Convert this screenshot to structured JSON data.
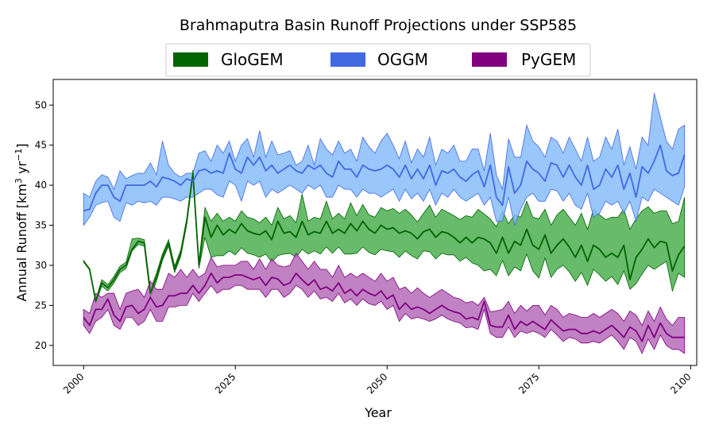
{
  "chart_data": {
    "type": "line",
    "title": "Brahmaputra Basin Runoff Projections under SSP585",
    "xlabel": "Year",
    "ylabel_main": "Annual Runoff [km",
    "ylabel_sup1": "3",
    "ylabel_mid": " yr",
    "ylabel_sup2": "−1",
    "ylabel_end": "]",
    "xlim": [
      1995,
      2101
    ],
    "ylim": [
      17.5,
      53.2
    ],
    "xticks": [
      2000,
      2025,
      2050,
      2075,
      2100
    ],
    "yticks": [
      20,
      25,
      30,
      35,
      40,
      45,
      50
    ],
    "legend_position": "top-center, above plot",
    "series": [
      {
        "name": "GloGEM",
        "color": "#006400",
        "band_color": "#4CAF50",
        "x": [
          2000,
          2001,
          2002,
          2003,
          2004,
          2005,
          2006,
          2007,
          2008,
          2009,
          2010,
          2011,
          2012,
          2013,
          2014,
          2015,
          2016,
          2017,
          2018,
          2019,
          2020,
          2021,
          2022,
          2023,
          2024,
          2025,
          2026,
          2027,
          2028,
          2029,
          2030,
          2031,
          2032,
          2033,
          2034,
          2035,
          2036,
          2037,
          2038,
          2039,
          2040,
          2041,
          2042,
          2043,
          2044,
          2045,
          2046,
          2047,
          2048,
          2049,
          2050,
          2051,
          2052,
          2053,
          2054,
          2055,
          2056,
          2057,
          2058,
          2059,
          2060,
          2061,
          2062,
          2063,
          2064,
          2065,
          2066,
          2067,
          2068,
          2069,
          2070,
          2071,
          2072,
          2073,
          2074,
          2075,
          2076,
          2077,
          2078,
          2079,
          2080,
          2081,
          2082,
          2083,
          2084,
          2085,
          2086,
          2087,
          2088,
          2089,
          2090,
          2091,
          2092,
          2093,
          2094,
          2095,
          2096,
          2097,
          2098,
          2099
        ],
        "mean": [
          30.5,
          29.5,
          25.5,
          27.8,
          27.2,
          28.2,
          29.5,
          30,
          32,
          33,
          32.8,
          26.5,
          28.5,
          31,
          32.8,
          29.5,
          31.5,
          35.5,
          41.5,
          30,
          36,
          33.5,
          35,
          33.8,
          34.5,
          34,
          35.2,
          34.3,
          34,
          33.8,
          34.3,
          33.2,
          35.5,
          34,
          34.2,
          33.5,
          35.5,
          33.8,
          34.2,
          34,
          35.5,
          34,
          34.5,
          34,
          35.2,
          34.3,
          35.5,
          34.5,
          34,
          35,
          34.5,
          34.7,
          34,
          34.3,
          34,
          33.3,
          34.2,
          34.5,
          33.5,
          34.2,
          34,
          33.5,
          32.8,
          33.5,
          32.8,
          33.5,
          33.3,
          32.8,
          31.5,
          33.5,
          31.5,
          33,
          32.5,
          34.5,
          32.5,
          32,
          33.8,
          31.5,
          32.5,
          33.3,
          32.3,
          31,
          32.5,
          30.5,
          32.5,
          32,
          31,
          31.5,
          31,
          32.5,
          28.2,
          31,
          32,
          33.3,
          32.2,
          33,
          32.8,
          29.3,
          31.3,
          32.4
        ],
        "upper": [
          30.6,
          29.6,
          25.7,
          28.2,
          27.6,
          28.6,
          29.9,
          30.4,
          33.3,
          33.4,
          33.2,
          27,
          29,
          31.4,
          33.2,
          29.9,
          31.9,
          35.9,
          41.9,
          30.4,
          37.2,
          35.5,
          36.5,
          35.5,
          36,
          35.5,
          36.8,
          36,
          35.8,
          35.3,
          36,
          35,
          37.2,
          35.8,
          36.2,
          35.3,
          38.9,
          35.5,
          36,
          35.8,
          38,
          35.8,
          36.5,
          35.8,
          37.8,
          36.2,
          37.6,
          36.3,
          36,
          37.2,
          36.8,
          37.1,
          36.5,
          37,
          36.3,
          35.4,
          36.5,
          37.5,
          36,
          37,
          36.6,
          36.2,
          35.7,
          36.2,
          36,
          37,
          36.4,
          35.8,
          34.8,
          36.8,
          35.2,
          36.3,
          36,
          38,
          36,
          35.8,
          37,
          35,
          36.3,
          37,
          36,
          35,
          36.5,
          34.5,
          37,
          36.3,
          35.7,
          36,
          36,
          37,
          34.5,
          35.8,
          36.8,
          37.3,
          36.5,
          36.8,
          36.8,
          35.2,
          35.5,
          38.5
        ],
        "lower": [
          30.4,
          29.4,
          25.3,
          27.4,
          26.8,
          27.8,
          29.1,
          29.6,
          31.8,
          32.6,
          32.4,
          26,
          28,
          30.6,
          32.4,
          29.1,
          31.1,
          35.1,
          41.1,
          29.6,
          33.5,
          31,
          31.2,
          31.2,
          31.8,
          31.3,
          32.2,
          31.5,
          31.3,
          31,
          31.4,
          30.4,
          31.2,
          31.4,
          31.5,
          31,
          32,
          31.4,
          31.8,
          31.4,
          32.3,
          31.5,
          32.3,
          31.4,
          31.4,
          31.5,
          32.3,
          31.6,
          31.3,
          32,
          31.8,
          31.7,
          31,
          31.8,
          31.2,
          30.8,
          31.8,
          31.7,
          30.8,
          31.5,
          31.3,
          31.3,
          30.5,
          31,
          30.3,
          30,
          29.3,
          29.5,
          28.7,
          30.6,
          28.7,
          29.8,
          29.3,
          31.4,
          29.3,
          28.4,
          30.9,
          28.5,
          29.5,
          30,
          29.2,
          28,
          29.1,
          27.5,
          29.5,
          28.8,
          28,
          28.6,
          27.6,
          29.3,
          27,
          27.7,
          28.9,
          30,
          29.5,
          30,
          30.5,
          26.8,
          29,
          28.5
        ]
      },
      {
        "name": "OGGM",
        "color": "#4169E1",
        "band_color": "#87BCFA",
        "x": [
          2000,
          2001,
          2002,
          2003,
          2004,
          2005,
          2006,
          2007,
          2008,
          2009,
          2010,
          2011,
          2012,
          2013,
          2014,
          2015,
          2016,
          2017,
          2018,
          2019,
          2020,
          2021,
          2022,
          2023,
          2024,
          2025,
          2026,
          2027,
          2028,
          2029,
          2030,
          2031,
          2032,
          2033,
          2034,
          2035,
          2036,
          2037,
          2038,
          2039,
          2040,
          2041,
          2042,
          2043,
          2044,
          2045,
          2046,
          2047,
          2048,
          2049,
          2050,
          2051,
          2052,
          2053,
          2054,
          2055,
          2056,
          2057,
          2058,
          2059,
          2060,
          2061,
          2062,
          2063,
          2064,
          2065,
          2066,
          2067,
          2068,
          2069,
          2070,
          2071,
          2072,
          2073,
          2074,
          2075,
          2076,
          2077,
          2078,
          2079,
          2080,
          2081,
          2082,
          2083,
          2084,
          2085,
          2086,
          2087,
          2088,
          2089,
          2090,
          2091,
          2092,
          2093,
          2094,
          2095,
          2096,
          2097,
          2098,
          2099
        ],
        "mean": [
          36.8,
          37,
          39,
          40,
          40,
          38.5,
          38,
          40,
          40,
          40,
          40,
          40.5,
          39.8,
          41,
          40.8,
          40.5,
          40,
          40.8,
          40.5,
          41.8,
          42,
          41.5,
          41.8,
          41.5,
          44,
          42,
          41.5,
          43.5,
          42.5,
          43.5,
          41.8,
          42.5,
          41.5,
          42,
          42.5,
          41.8,
          41.5,
          42.5,
          42,
          42.5,
          41.5,
          41,
          43,
          42,
          42,
          41,
          42.5,
          42,
          41.8,
          42,
          42.5,
          42,
          41,
          42.5,
          40.8,
          42,
          40.8,
          42.5,
          40,
          41.8,
          41.5,
          42,
          41,
          40.5,
          41.3,
          41.8,
          39.8,
          42.5,
          38.5,
          37.5,
          42.3,
          39,
          40,
          43,
          42,
          41.5,
          40.5,
          42.8,
          42.5,
          41,
          42.5,
          41,
          40,
          42.5,
          39.5,
          40,
          42,
          41,
          42.5,
          39.5,
          41.5,
          38.5,
          42.3,
          41.5,
          43,
          45,
          41.8,
          41.2,
          41.5,
          43.8
        ],
        "upper": [
          39,
          38.5,
          40.5,
          41.3,
          41,
          39.5,
          41.8,
          40.8,
          41.2,
          41.5,
          41.5,
          42.8,
          41.3,
          45.5,
          42.5,
          41.5,
          41,
          41.5,
          41.5,
          44,
          44.3,
          43,
          45,
          44,
          45.5,
          43,
          45,
          45.8,
          43.5,
          46.8,
          43.5,
          45.5,
          43.8,
          44,
          44.3,
          42.5,
          43,
          45,
          42.5,
          45.8,
          44.5,
          43.8,
          45.5,
          44,
          44.5,
          43,
          46,
          44.8,
          44,
          45.5,
          46.5,
          45,
          43.3,
          45.5,
          42.8,
          44.5,
          43.5,
          46,
          42.5,
          44.5,
          44,
          45,
          43,
          43,
          44.5,
          44.5,
          41.8,
          46.5,
          41.3,
          39.5,
          45.8,
          43.5,
          43.5,
          47.5,
          45.5,
          44.8,
          43.5,
          46,
          45.5,
          44,
          46,
          44.5,
          43,
          46,
          43,
          43.5,
          46,
          44.5,
          47,
          42.5,
          44.8,
          42,
          46,
          45,
          51.5,
          48.5,
          45.5,
          44.5,
          47,
          47.5
        ],
        "lower": [
          35,
          36,
          37.5,
          37.8,
          38,
          36,
          35.5,
          37.8,
          37.5,
          38,
          37.8,
          38,
          37.5,
          38.5,
          38.5,
          38.3,
          38,
          38.5,
          38.5,
          39,
          39.5,
          39.5,
          38.8,
          38.5,
          40.5,
          40,
          38,
          40.5,
          40,
          40.5,
          38.5,
          39.5,
          39,
          39.5,
          40,
          39.5,
          39,
          40,
          39.5,
          40,
          38.5,
          38.5,
          40,
          39.5,
          39.5,
          38.5,
          39.5,
          39,
          39,
          38.5,
          39,
          39.5,
          38,
          39.5,
          38.3,
          39,
          38,
          39.5,
          37.5,
          39,
          38.5,
          39.5,
          38.5,
          38,
          38.5,
          39,
          37.5,
          38.5,
          35.5,
          35.5,
          38.5,
          35,
          37,
          38.5,
          39,
          38,
          38,
          39.5,
          39.3,
          38,
          39,
          37.5,
          37,
          39,
          36,
          36.5,
          38,
          37.5,
          38,
          36.5,
          38,
          35.5,
          38.5,
          38,
          39.5,
          39,
          38.5,
          38,
          37.5,
          39.8
        ]
      },
      {
        "name": "PyGEM",
        "color": "#800080",
        "band_color": "#B56CB8",
        "x": [
          2000,
          2001,
          2002,
          2003,
          2004,
          2005,
          2006,
          2007,
          2008,
          2009,
          2010,
          2011,
          2012,
          2013,
          2014,
          2015,
          2016,
          2017,
          2018,
          2019,
          2020,
          2021,
          2022,
          2023,
          2024,
          2025,
          2026,
          2027,
          2028,
          2029,
          2030,
          2031,
          2032,
          2033,
          2034,
          2035,
          2036,
          2037,
          2038,
          2039,
          2040,
          2041,
          2042,
          2043,
          2044,
          2045,
          2046,
          2047,
          2048,
          2049,
          2050,
          2051,
          2052,
          2053,
          2054,
          2055,
          2056,
          2057,
          2058,
          2059,
          2060,
          2061,
          2062,
          2063,
          2064,
          2065,
          2066,
          2067,
          2068,
          2069,
          2070,
          2071,
          2072,
          2073,
          2074,
          2075,
          2076,
          2077,
          2078,
          2079,
          2080,
          2081,
          2082,
          2083,
          2084,
          2085,
          2086,
          2087,
          2088,
          2089,
          2090,
          2091,
          2092,
          2093,
          2094,
          2095,
          2096,
          2097,
          2098,
          2099
        ],
        "mean": [
          23.5,
          22.5,
          24.5,
          24.5,
          25.8,
          23.8,
          23,
          24.8,
          25,
          24,
          24.5,
          26,
          24.8,
          25,
          26.2,
          26.2,
          26.5,
          26.5,
          27.5,
          26.5,
          27.5,
          29,
          27.8,
          28.5,
          28.5,
          28.8,
          28.8,
          28.5,
          28.2,
          28.5,
          27.5,
          28.5,
          28.3,
          27.5,
          27.8,
          29,
          28.2,
          27.5,
          28.2,
          27,
          27.3,
          26.8,
          27.8,
          26.5,
          27,
          26.2,
          27,
          26.5,
          26.2,
          26.8,
          25.8,
          26.3,
          24.5,
          25.3,
          24.5,
          24.8,
          24.5,
          24,
          24.5,
          25,
          24.5,
          24.2,
          24,
          23.3,
          23.5,
          23.2,
          25.5,
          22.5,
          22.3,
          22.3,
          23.8,
          22,
          23,
          22.5,
          23,
          22.5,
          22,
          23.2,
          22.5,
          21.8,
          22,
          22,
          21.5,
          21.5,
          21.8,
          21.5,
          22,
          22.5,
          21.8,
          21,
          22.3,
          21.8,
          20.5,
          22.5,
          21,
          22.8,
          21.5,
          21,
          21,
          21
        ],
        "upper": [
          24.5,
          24,
          26.5,
          26,
          26.5,
          26.5,
          24.5,
          26.5,
          26.8,
          27,
          26,
          28,
          27,
          27,
          29,
          28.5,
          29.5,
          28.5,
          29.5,
          28.5,
          29,
          31,
          29.8,
          30,
          30,
          30,
          30.5,
          30.5,
          29.5,
          30.8,
          29.5,
          30.8,
          30,
          29.8,
          30,
          31.5,
          30.5,
          29.5,
          30.5,
          29.5,
          29.5,
          28.5,
          30,
          28.5,
          29,
          28.5,
          29,
          28.5,
          28,
          29,
          28,
          28.5,
          27,
          27.3,
          26.5,
          27.2,
          26.5,
          26,
          26.5,
          27,
          26.5,
          26,
          25.8,
          25.3,
          25.5,
          25,
          26,
          24.2,
          24.3,
          24.5,
          25.5,
          24,
          25,
          24.3,
          25,
          25,
          23.8,
          25,
          24.5,
          23.5,
          24,
          23.8,
          23.5,
          23.5,
          24,
          23.5,
          24,
          24.5,
          24,
          23,
          24.3,
          23.8,
          22.5,
          24.3,
          23,
          24.8,
          23.3,
          22.5,
          23.5,
          23.5
        ],
        "lower": [
          22.5,
          21.5,
          23,
          23.5,
          24.5,
          22.5,
          22,
          23.5,
          23.5,
          22.5,
          23,
          24.5,
          23,
          23,
          24.8,
          24.8,
          25,
          25,
          26.5,
          25.5,
          26.5,
          27.5,
          26.5,
          27,
          27,
          27.5,
          27.5,
          27,
          27,
          27,
          26,
          27,
          27,
          26,
          26.5,
          27.5,
          27,
          26,
          26.8,
          25.8,
          26,
          25.5,
          26.5,
          25.3,
          25.8,
          25,
          25.8,
          25.2,
          25,
          25.5,
          24.5,
          25,
          23,
          24,
          23.3,
          23.5,
          23.3,
          23,
          23.3,
          23.8,
          23.3,
          23,
          22.8,
          22.2,
          22.3,
          22,
          24.5,
          21.5,
          21,
          21,
          22.3,
          21,
          21.8,
          21.5,
          21.8,
          21.5,
          21,
          22,
          21.3,
          20.5,
          21,
          20.8,
          20.3,
          20.3,
          20.5,
          20.3,
          20.8,
          21.3,
          20.5,
          19.5,
          21,
          20.5,
          19,
          20.8,
          19.5,
          21.3,
          20,
          19.5,
          19.5,
          19
        ]
      }
    ]
  }
}
